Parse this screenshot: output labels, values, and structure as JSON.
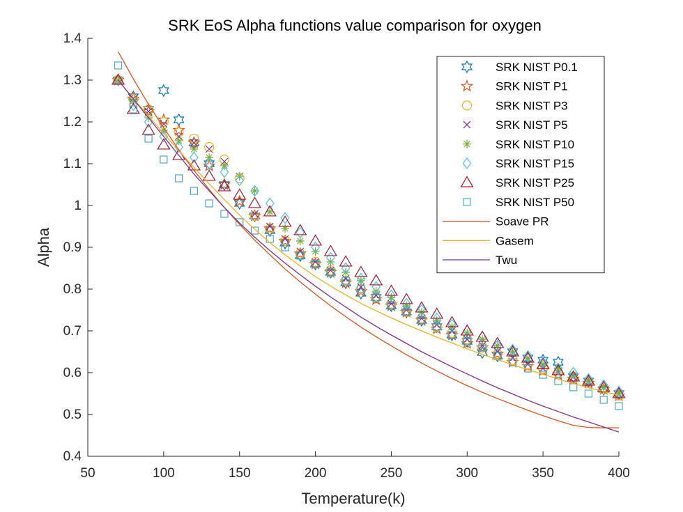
{
  "chart_data": {
    "type": "scatter",
    "title": "SRK EoS Alpha functions value comparison for oxygen",
    "xlabel": "Temperature(k)",
    "ylabel": "Alpha",
    "xlim": [
      50,
      400
    ],
    "ylim": [
      0.4,
      1.4
    ],
    "xticks": [
      "50",
      "100",
      "150",
      "200",
      "250",
      "300",
      "350",
      "400"
    ],
    "yticks": [
      "0.4",
      "0.5",
      "0.6",
      "0.7",
      "0.8",
      "0.9",
      "1",
      "1.1",
      "1.2",
      "1.3",
      "1.4"
    ],
    "grid": false,
    "legend_position": "top-right",
    "series": [
      {
        "name": "SRK NIST P0.1",
        "marker": "hexagram",
        "color": "#0072BD",
        "x": [
          70,
          80,
          90,
          100,
          110,
          120,
          130,
          140,
          150,
          160,
          170,
          180,
          190,
          200,
          210,
          220,
          230,
          240,
          250,
          260,
          270,
          280,
          290,
          300,
          310,
          320,
          330,
          340,
          350,
          360,
          370,
          380,
          390,
          400
        ],
        "y": [
          1.3,
          1.26,
          1.23,
          1.275,
          1.205,
          1.15,
          1.1,
          1.05,
          1.005,
          0.975,
          0.94,
          0.91,
          0.88,
          0.86,
          0.84,
          0.815,
          0.79,
          0.78,
          0.76,
          0.745,
          0.725,
          0.71,
          0.69,
          0.675,
          0.648,
          0.64,
          0.65,
          0.635,
          0.63,
          0.625,
          0.59,
          0.58,
          0.56,
          0.55
        ]
      },
      {
        "name": "SRK NIST P1",
        "marker": "pentagram",
        "color": "#D95319",
        "x": [
          70,
          80,
          90,
          100,
          110,
          120,
          130,
          140,
          150,
          160,
          170,
          180,
          190,
          200,
          210,
          220,
          230,
          240,
          250,
          260,
          270,
          280,
          290,
          300,
          310,
          320,
          330,
          340,
          350,
          360,
          370,
          380,
          390,
          400
        ],
        "y": [
          1.3,
          1.255,
          1.225,
          1.205,
          1.18,
          1.15,
          1.095,
          1.05,
          1.01,
          0.975,
          0.945,
          0.915,
          0.885,
          0.86,
          0.84,
          0.815,
          0.795,
          0.775,
          0.76,
          0.745,
          0.725,
          0.705,
          0.69,
          0.67,
          0.66,
          0.645,
          0.625,
          0.615,
          0.605,
          0.595,
          0.585,
          0.575,
          0.56,
          0.545
        ]
      },
      {
        "name": "SRK NIST P3",
        "marker": "circle",
        "color": "#EDB120",
        "x": [
          70,
          80,
          90,
          100,
          110,
          120,
          130,
          140,
          150,
          160,
          170,
          180,
          190,
          200,
          210,
          220,
          230,
          240,
          250,
          260,
          270,
          280,
          290,
          300,
          310,
          320,
          330,
          340,
          350,
          360,
          370,
          380,
          390,
          400
        ],
        "y": [
          1.3,
          1.255,
          1.23,
          1.2,
          1.175,
          1.16,
          1.14,
          1.11,
          1.065,
          0.975,
          0.945,
          0.915,
          0.885,
          0.865,
          0.845,
          0.82,
          0.8,
          0.78,
          0.765,
          0.745,
          0.73,
          0.71,
          0.695,
          0.68,
          0.66,
          0.645,
          0.63,
          0.62,
          0.61,
          0.6,
          0.585,
          0.575,
          0.56,
          0.545
        ]
      },
      {
        "name": "SRK NIST P5",
        "marker": "x",
        "color": "#7E2F8E",
        "x": [
          70,
          80,
          90,
          100,
          110,
          120,
          130,
          140,
          150,
          160,
          170,
          180,
          190,
          200,
          210,
          220,
          230,
          240,
          250,
          260,
          270,
          280,
          290,
          300,
          310,
          320,
          330,
          340,
          350,
          360,
          370,
          380,
          390,
          400
        ],
        "y": [
          1.3,
          1.255,
          1.225,
          1.195,
          1.165,
          1.15,
          1.135,
          1.105,
          1.07,
          0.98,
          0.95,
          0.92,
          0.89,
          0.865,
          0.845,
          0.825,
          0.805,
          0.785,
          0.765,
          0.75,
          0.73,
          0.715,
          0.7,
          0.68,
          0.665,
          0.65,
          0.635,
          0.62,
          0.61,
          0.6,
          0.59,
          0.575,
          0.565,
          0.55
        ]
      },
      {
        "name": "SRK NIST P10",
        "marker": "asterisk",
        "color": "#77AC30",
        "x": [
          70,
          80,
          90,
          100,
          110,
          120,
          130,
          140,
          150,
          160,
          170,
          180,
          190,
          200,
          210,
          220,
          230,
          240,
          250,
          260,
          270,
          280,
          290,
          300,
          310,
          320,
          330,
          340,
          350,
          360,
          370,
          380,
          390,
          400
        ],
        "y": [
          1.3,
          1.25,
          1.21,
          1.18,
          1.155,
          1.135,
          1.115,
          1.095,
          1.07,
          1.035,
          0.985,
          0.945,
          0.915,
          0.89,
          0.865,
          0.84,
          0.82,
          0.795,
          0.78,
          0.76,
          0.745,
          0.725,
          0.71,
          0.695,
          0.68,
          0.665,
          0.65,
          0.635,
          0.62,
          0.61,
          0.595,
          0.58,
          0.565,
          0.55
        ]
      },
      {
        "name": "SRK NIST P15",
        "marker": "diamond",
        "color": "#4DBEEE",
        "x": [
          70,
          80,
          90,
          100,
          110,
          120,
          130,
          140,
          150,
          160,
          170,
          180,
          190,
          200,
          210,
          220,
          230,
          240,
          250,
          260,
          270,
          280,
          290,
          300,
          310,
          320,
          330,
          340,
          350,
          360,
          370,
          380,
          390,
          400
        ],
        "y": [
          1.3,
          1.24,
          1.2,
          1.165,
          1.14,
          1.115,
          1.1,
          1.08,
          1.06,
          1.035,
          1.005,
          0.97,
          0.935,
          0.9,
          0.875,
          0.85,
          0.825,
          0.805,
          0.785,
          0.765,
          0.75,
          0.73,
          0.715,
          0.7,
          0.685,
          0.665,
          0.655,
          0.64,
          0.625,
          0.61,
          0.6,
          0.585,
          0.57,
          0.555
        ]
      },
      {
        "name": "SRK NIST P25",
        "marker": "triangle",
        "color": "#A2142F",
        "x": [
          70,
          80,
          90,
          100,
          110,
          120,
          130,
          140,
          150,
          160,
          170,
          180,
          190,
          200,
          210,
          220,
          230,
          240,
          250,
          260,
          270,
          280,
          290,
          300,
          310,
          320,
          330,
          340,
          350,
          360,
          370,
          380,
          390,
          400
        ],
        "y": [
          1.3,
          1.23,
          1.18,
          1.145,
          1.12,
          1.095,
          1.07,
          1.045,
          1.025,
          1.005,
          0.985,
          0.96,
          0.94,
          0.915,
          0.89,
          0.865,
          0.84,
          0.82,
          0.795,
          0.775,
          0.755,
          0.74,
          0.72,
          0.7,
          0.685,
          0.67,
          0.65,
          0.635,
          0.62,
          0.605,
          0.59,
          0.58,
          0.565,
          0.55
        ]
      },
      {
        "name": "SRK NIST P50",
        "marker": "square",
        "color": "#4DA6C8",
        "x": [
          70,
          80,
          90,
          100,
          110,
          120,
          130,
          140,
          150,
          160,
          170,
          180,
          190,
          200,
          210,
          220,
          230,
          240,
          250,
          260,
          270,
          280,
          290,
          300,
          310,
          320,
          330,
          340,
          350,
          360,
          370,
          380,
          390,
          400
        ],
        "y": [
          1.335,
          1.23,
          1.16,
          1.11,
          1.065,
          1.035,
          1.005,
          0.98,
          0.96,
          0.94,
          0.92,
          0.9,
          0.88,
          0.86,
          0.84,
          0.82,
          0.8,
          0.78,
          0.76,
          0.745,
          0.725,
          0.71,
          0.69,
          0.675,
          0.66,
          0.64,
          0.625,
          0.61,
          0.595,
          0.58,
          0.565,
          0.55,
          0.535,
          0.52
        ]
      },
      {
        "name": "Soave PR",
        "marker": "line",
        "color": "#D95319",
        "x": [
          70,
          80,
          90,
          100,
          110,
          120,
          130,
          140,
          150,
          160,
          170,
          180,
          190,
          200,
          210,
          220,
          230,
          240,
          250,
          260,
          270,
          280,
          290,
          300,
          310,
          320,
          330,
          340,
          350,
          360,
          370,
          380,
          390,
          400
        ],
        "y": [
          1.368,
          1.303,
          1.242,
          1.186,
          1.133,
          1.084,
          1.038,
          0.995,
          0.955,
          0.917,
          0.882,
          0.848,
          0.817,
          0.788,
          0.76,
          0.734,
          0.709,
          0.686,
          0.664,
          0.643,
          0.623,
          0.604,
          0.586,
          0.569,
          0.553,
          0.538,
          0.524,
          0.51,
          0.497,
          0.485,
          0.474,
          0.469,
          0.468,
          0.468
        ]
      },
      {
        "name": "Gasem",
        "marker": "line",
        "color": "#EDB120",
        "x": [
          70,
          80,
          90,
          100,
          110,
          120,
          130,
          140,
          150,
          160,
          170,
          180,
          190,
          200,
          210,
          220,
          230,
          240,
          250,
          260,
          270,
          280,
          290,
          300,
          310,
          320,
          330,
          340,
          350,
          360,
          370,
          380,
          390,
          400
        ],
        "y": [
          1.3,
          1.256,
          1.214,
          1.172,
          1.131,
          1.091,
          1.052,
          1.014,
          0.977,
          0.943,
          0.911,
          0.882,
          0.855,
          0.83,
          0.807,
          0.786,
          0.766,
          0.748,
          0.731,
          0.715,
          0.7,
          0.685,
          0.671,
          0.657,
          0.644,
          0.631,
          0.619,
          0.607,
          0.596,
          0.585,
          0.574,
          0.564,
          0.555,
          0.546
        ]
      },
      {
        "name": "Twu",
        "marker": "line",
        "color": "#7E2F8E",
        "x": [
          70,
          80,
          90,
          100,
          110,
          120,
          130,
          140,
          150,
          160,
          170,
          180,
          190,
          200,
          210,
          220,
          230,
          240,
          250,
          260,
          270,
          280,
          290,
          300,
          310,
          320,
          330,
          340,
          350,
          360,
          370,
          380,
          390,
          400
        ],
        "y": [
          1.3,
          1.255,
          1.21,
          1.165,
          1.12,
          1.075,
          1.035,
          0.995,
          0.958,
          0.924,
          0.892,
          0.862,
          0.834,
          0.807,
          0.781,
          0.757,
          0.733,
          0.711,
          0.69,
          0.67,
          0.65,
          0.632,
          0.614,
          0.597,
          0.58,
          0.564,
          0.549,
          0.534,
          0.52,
          0.507,
          0.494,
          0.482,
          0.47,
          0.458
        ]
      }
    ]
  }
}
